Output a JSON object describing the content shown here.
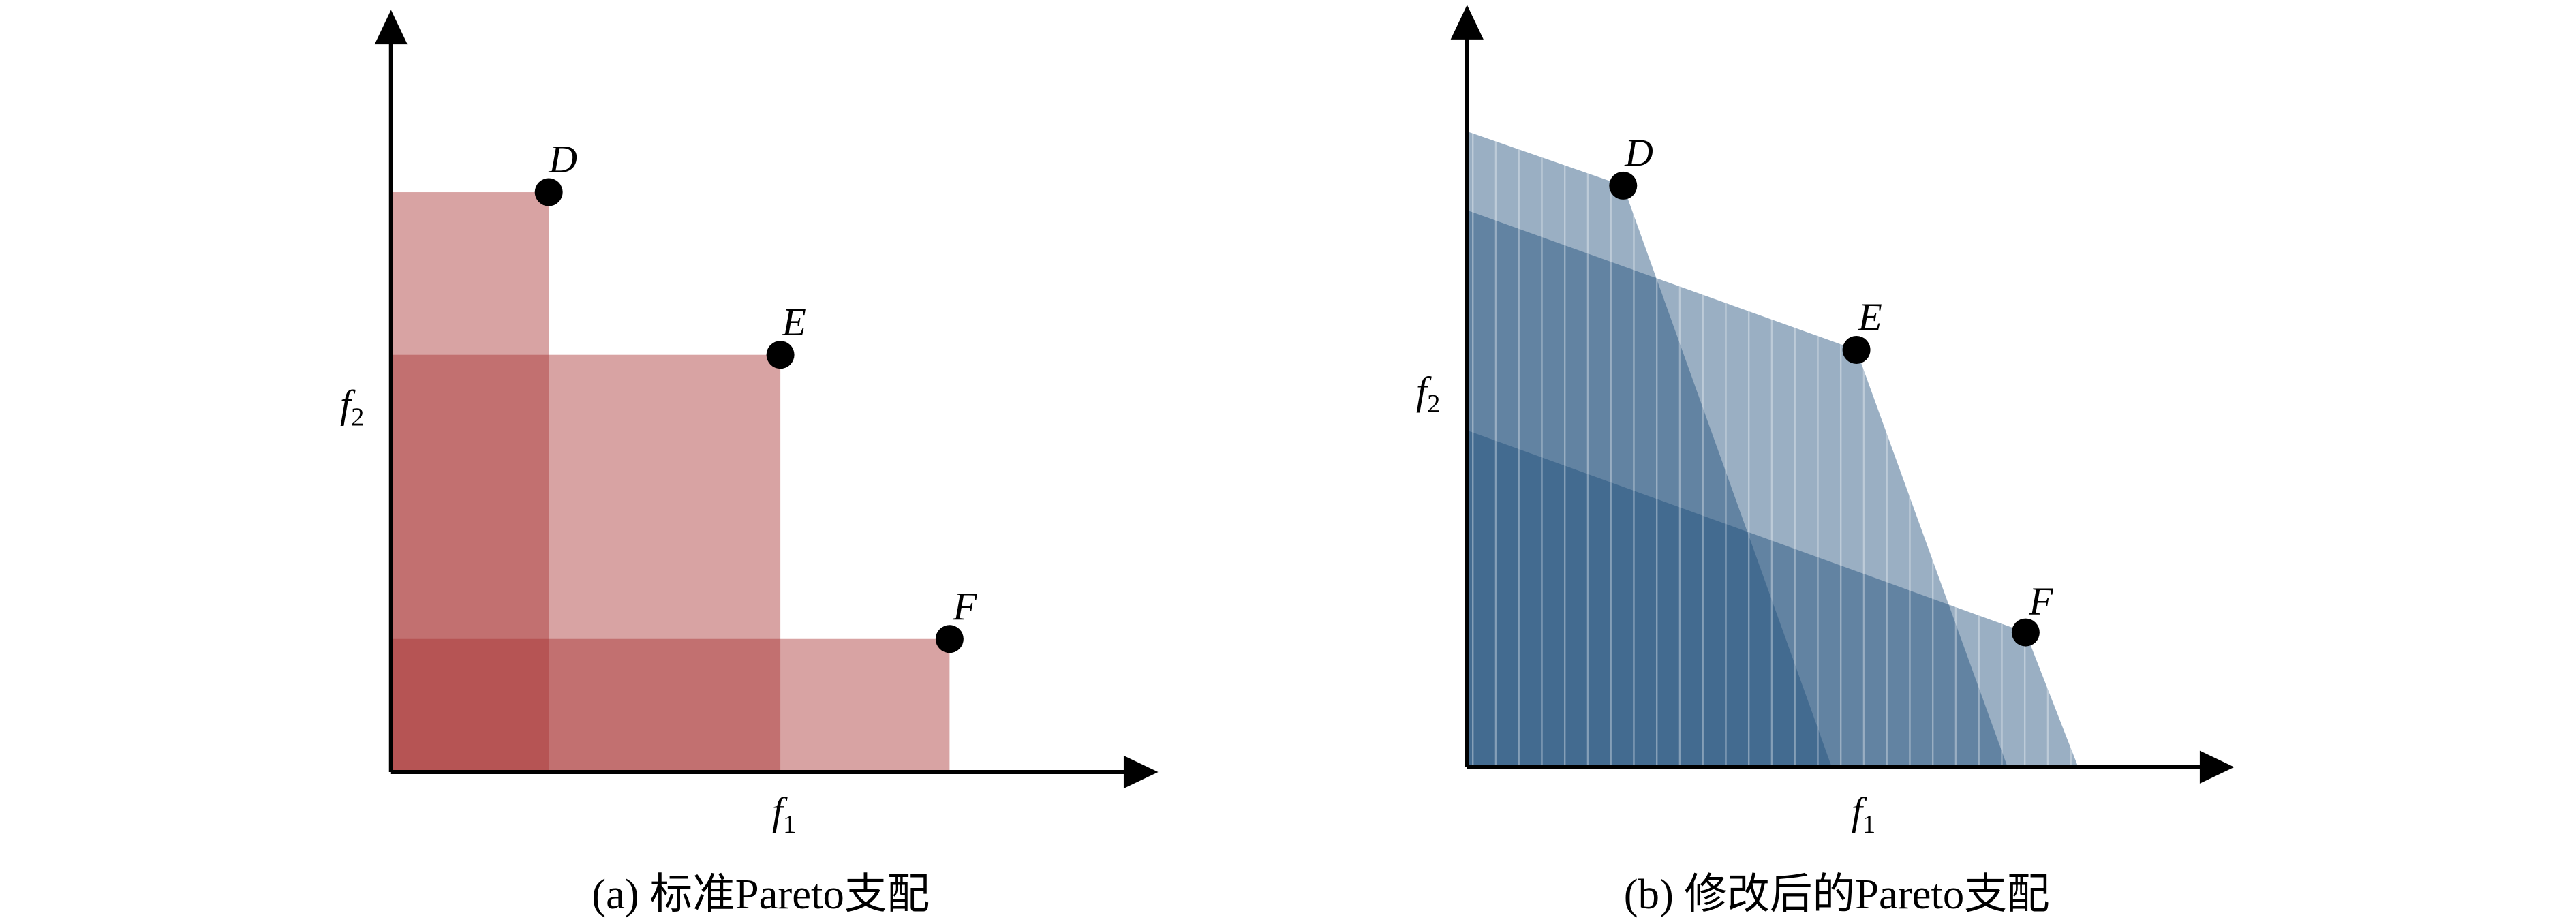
{
  "panels": [
    {
      "caption": "(a) 标准Pareto支配",
      "x_label": {
        "base": "f",
        "sub": "1"
      },
      "y_label": {
        "base": "f",
        "sub": "2"
      },
      "points": [
        {
          "label": "D"
        },
        {
          "label": "E"
        },
        {
          "label": "F"
        }
      ]
    },
    {
      "caption": "(b) 修改后的Pareto支配",
      "x_label": {
        "base": "f",
        "sub": "1"
      },
      "y_label": {
        "base": "f",
        "sub": "2"
      },
      "points": [
        {
          "label": "D"
        },
        {
          "label": "E"
        },
        {
          "label": "F"
        }
      ]
    }
  ]
}
